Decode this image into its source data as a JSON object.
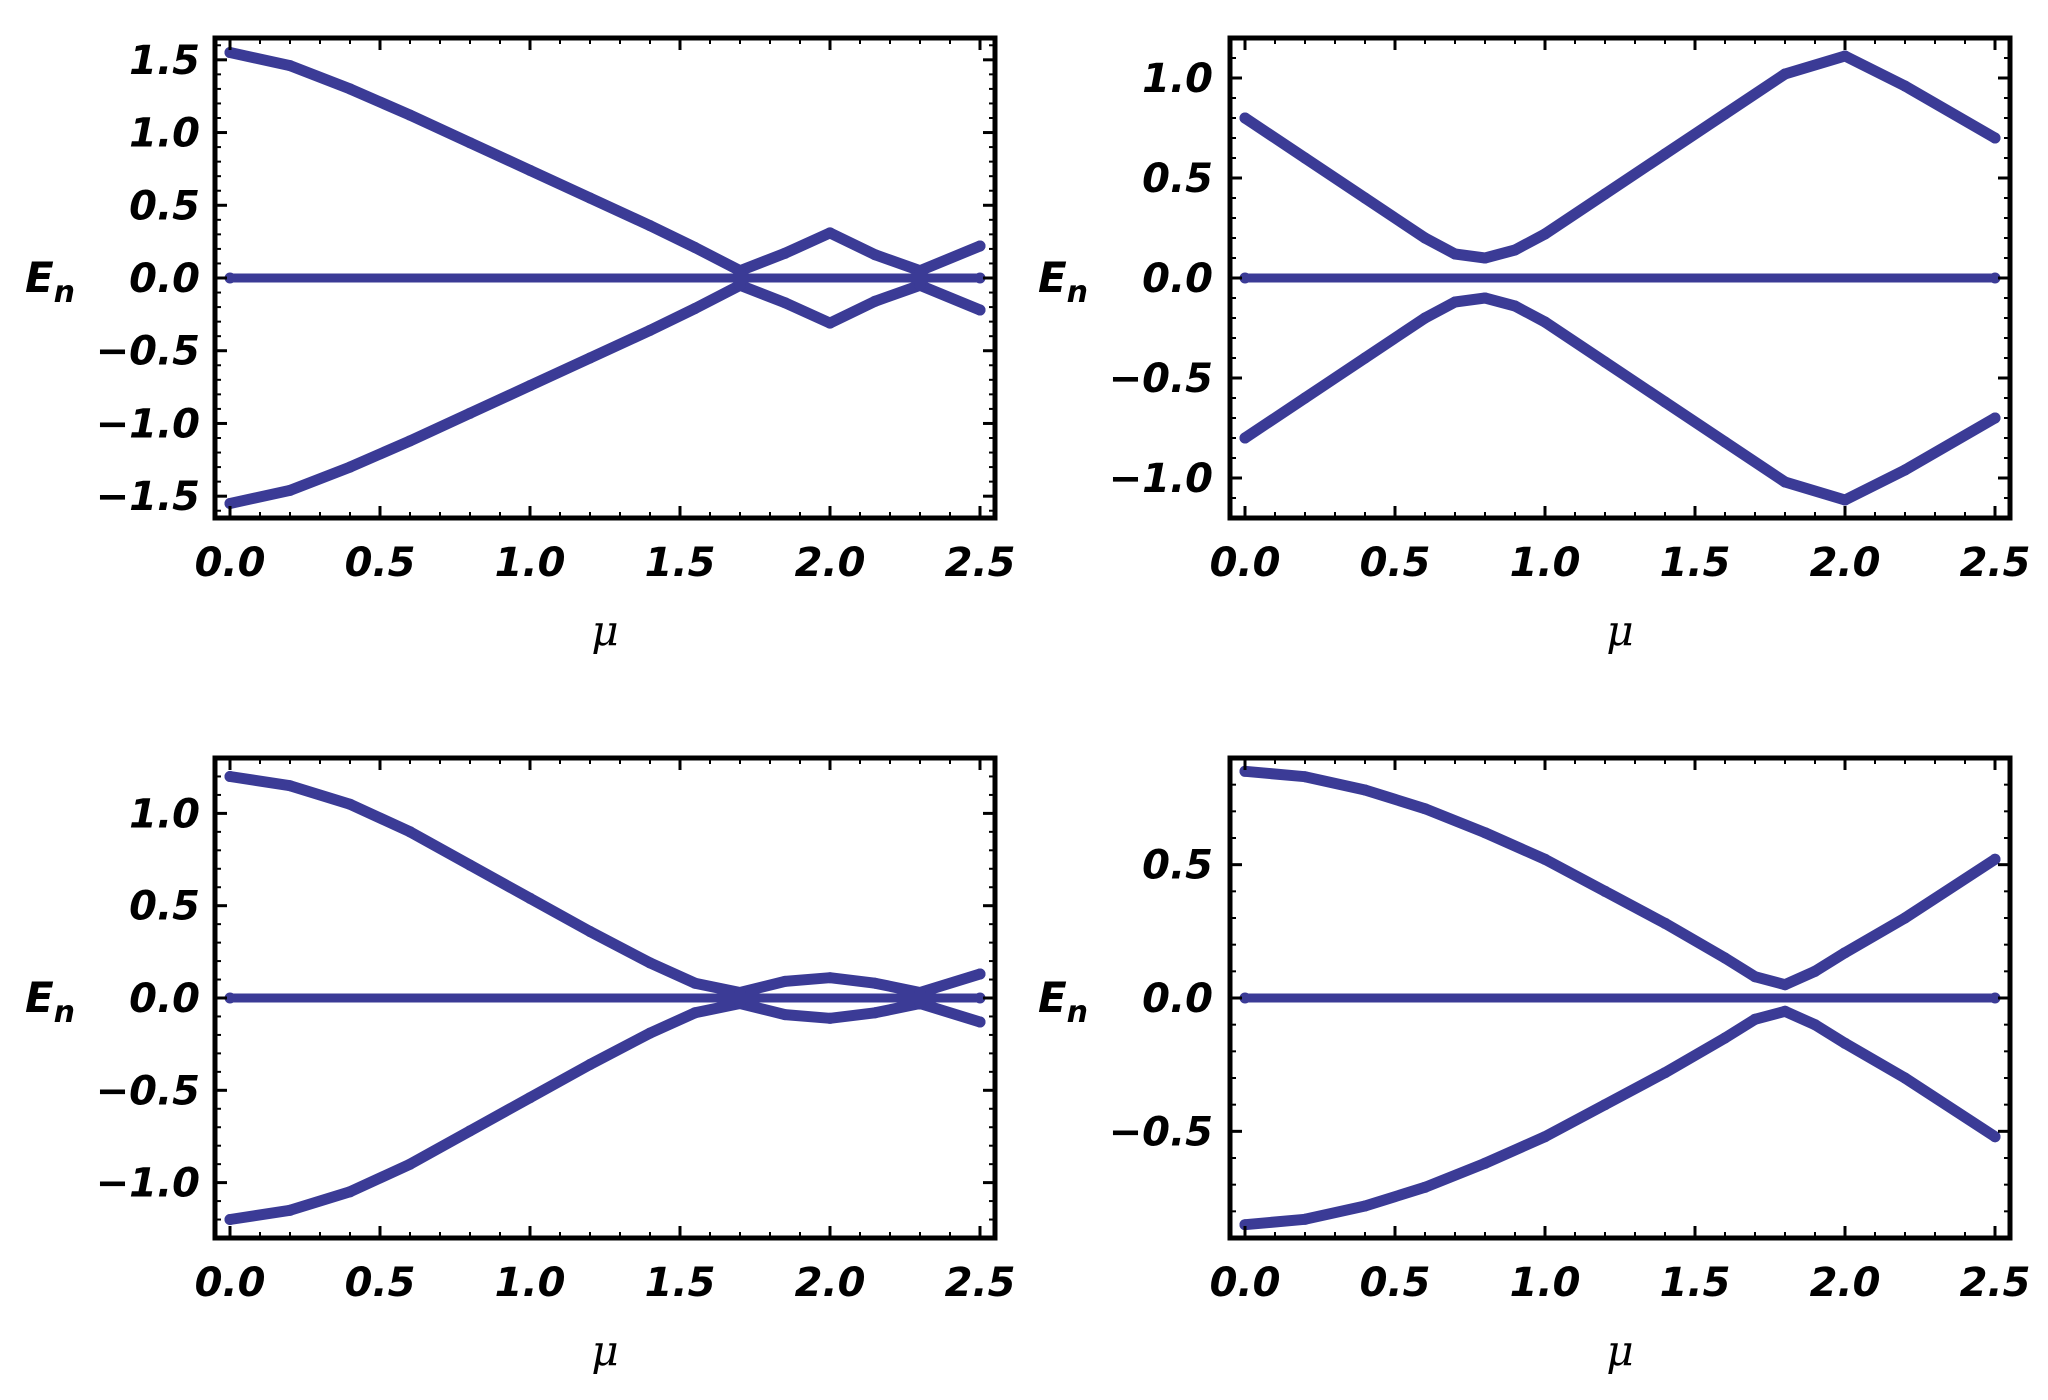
{
  "colors": {
    "series": "#3b3b96",
    "frame": "#000000",
    "zero_line": "#000000"
  },
  "chart_data": [
    {
      "type": "scatter",
      "title": "",
      "xlabel": "μ",
      "ylabel_main": "E",
      "ylabel_sub": "n",
      "xlim": [
        -0.05,
        2.55
      ],
      "ylim": [
        -1.65,
        1.65
      ],
      "xticks": [
        "0.0",
        "0.5",
        "1.0",
        "1.5",
        "2.0",
        "2.5"
      ],
      "xtick_values": [
        0,
        0.5,
        1,
        1.5,
        2,
        2.5
      ],
      "yticks": [
        "1.5",
        "1.0",
        "0.5",
        "0.0",
        "−0.5",
        "−1.0",
        "−1.5"
      ],
      "ytick_values": [
        1.5,
        1.0,
        0.5,
        0,
        -0.5,
        -1.0,
        -1.5
      ],
      "zero_line": true,
      "series": [
        {
          "x": [
            0,
            0.2,
            0.4,
            0.6,
            0.8,
            1.0,
            1.2,
            1.4,
            1.55,
            1.7,
            1.85,
            2.0,
            2.15,
            2.3,
            2.5
          ],
          "y": [
            1.55,
            1.46,
            1.3,
            1.12,
            0.93,
            0.74,
            0.55,
            0.36,
            0.21,
            0.05,
            0.17,
            0.31,
            0.16,
            0.05,
            0.22
          ]
        },
        {
          "x": [
            0,
            0.2,
            0.4,
            0.6,
            0.8,
            1.0,
            1.2,
            1.4,
            1.55,
            1.7,
            1.85,
            2.0,
            2.15,
            2.3,
            2.5
          ],
          "y": [
            -1.55,
            -1.46,
            -1.3,
            -1.12,
            -0.93,
            -0.74,
            -0.55,
            -0.36,
            -0.21,
            -0.05,
            -0.17,
            -0.31,
            -0.16,
            -0.05,
            -0.22
          ]
        },
        {
          "x": [
            0,
            2.5
          ],
          "y": [
            0,
            0
          ]
        }
      ]
    },
    {
      "type": "scatter",
      "title": "",
      "xlabel": "μ",
      "ylabel_main": "E",
      "ylabel_sub": "n",
      "xlim": [
        -0.05,
        2.55
      ],
      "ylim": [
        -1.2,
        1.2
      ],
      "xticks": [
        "0.0",
        "0.5",
        "1.0",
        "1.5",
        "2.0",
        "2.5"
      ],
      "xtick_values": [
        0,
        0.5,
        1,
        1.5,
        2,
        2.5
      ],
      "yticks": [
        "1.0",
        "0.5",
        "0.0",
        "−0.5",
        "−1.0"
      ],
      "ytick_values": [
        1.0,
        0.5,
        0,
        -0.5,
        -1.0
      ],
      "zero_line": true,
      "series": [
        {
          "x": [
            0,
            0.2,
            0.4,
            0.6,
            0.7,
            0.8,
            0.9,
            1.0,
            1.2,
            1.4,
            1.6,
            1.8,
            2.0,
            2.2,
            2.5
          ],
          "y": [
            0.8,
            0.6,
            0.4,
            0.2,
            0.12,
            0.1,
            0.14,
            0.22,
            0.42,
            0.62,
            0.82,
            1.02,
            1.11,
            0.96,
            0.7
          ]
        },
        {
          "x": [
            0,
            0.2,
            0.4,
            0.6,
            0.7,
            0.8,
            0.9,
            1.0,
            1.2,
            1.4,
            1.6,
            1.8,
            2.0,
            2.2,
            2.5
          ],
          "y": [
            -0.8,
            -0.6,
            -0.4,
            -0.2,
            -0.12,
            -0.1,
            -0.14,
            -0.22,
            -0.42,
            -0.62,
            -0.82,
            -1.02,
            -1.11,
            -0.96,
            -0.7
          ]
        },
        {
          "x": [
            0,
            2.5
          ],
          "y": [
            0,
            0
          ]
        }
      ]
    },
    {
      "type": "scatter",
      "title": "",
      "xlabel": "μ",
      "ylabel_main": "E",
      "ylabel_sub": "n",
      "xlim": [
        -0.05,
        2.55
      ],
      "ylim": [
        -1.3,
        1.3
      ],
      "xticks": [
        "0.0",
        "0.5",
        "1.0",
        "1.5",
        "2.0",
        "2.5"
      ],
      "xtick_values": [
        0,
        0.5,
        1,
        1.5,
        2,
        2.5
      ],
      "yticks": [
        "1.0",
        "0.5",
        "0.0",
        "−0.5",
        "−1.0"
      ],
      "ytick_values": [
        1.0,
        0.5,
        0,
        -0.5,
        -1.0
      ],
      "zero_line": true,
      "series": [
        {
          "x": [
            0,
            0.2,
            0.4,
            0.6,
            0.8,
            1.0,
            1.2,
            1.4,
            1.55,
            1.7,
            1.85,
            2.0,
            2.15,
            2.3,
            2.5
          ],
          "y": [
            1.2,
            1.15,
            1.05,
            0.9,
            0.72,
            0.54,
            0.36,
            0.19,
            0.08,
            0.03,
            0.09,
            0.11,
            0.08,
            0.03,
            0.13
          ]
        },
        {
          "x": [
            0,
            0.2,
            0.4,
            0.6,
            0.8,
            1.0,
            1.2,
            1.4,
            1.55,
            1.7,
            1.85,
            2.0,
            2.15,
            2.3,
            2.5
          ],
          "y": [
            -1.2,
            -1.15,
            -1.05,
            -0.9,
            -0.72,
            -0.54,
            -0.36,
            -0.19,
            -0.08,
            -0.03,
            -0.09,
            -0.11,
            -0.08,
            -0.03,
            -0.13
          ]
        },
        {
          "x": [
            0,
            2.5
          ],
          "y": [
            0,
            0
          ]
        }
      ]
    },
    {
      "type": "scatter",
      "title": "",
      "xlabel": "μ",
      "ylabel_main": "E",
      "ylabel_sub": "n",
      "xlim": [
        -0.05,
        2.55
      ],
      "ylim": [
        -0.9,
        0.9
      ],
      "xticks": [
        "0.0",
        "0.5",
        "1.0",
        "1.5",
        "2.0",
        "2.5"
      ],
      "xtick_values": [
        0,
        0.5,
        1,
        1.5,
        2,
        2.5
      ],
      "yticks": [
        "0.5",
        "0.0",
        "−0.5"
      ],
      "ytick_values": [
        0.5,
        0,
        -0.5
      ],
      "zero_line": true,
      "series": [
        {
          "x": [
            0,
            0.2,
            0.4,
            0.6,
            0.8,
            1.0,
            1.2,
            1.4,
            1.6,
            1.7,
            1.8,
            1.9,
            2.0,
            2.2,
            2.5
          ],
          "y": [
            0.85,
            0.83,
            0.78,
            0.71,
            0.62,
            0.52,
            0.4,
            0.28,
            0.15,
            0.08,
            0.05,
            0.1,
            0.17,
            0.3,
            0.52
          ]
        },
        {
          "x": [
            0,
            0.2,
            0.4,
            0.6,
            0.8,
            1.0,
            1.2,
            1.4,
            1.6,
            1.7,
            1.8,
            1.9,
            2.0,
            2.2,
            2.5
          ],
          "y": [
            -0.85,
            -0.83,
            -0.78,
            -0.71,
            -0.62,
            -0.52,
            -0.4,
            -0.28,
            -0.15,
            -0.08,
            -0.05,
            -0.1,
            -0.17,
            -0.3,
            -0.52
          ]
        },
        {
          "x": [
            0,
            2.5
          ],
          "y": [
            0,
            0
          ]
        }
      ]
    }
  ]
}
